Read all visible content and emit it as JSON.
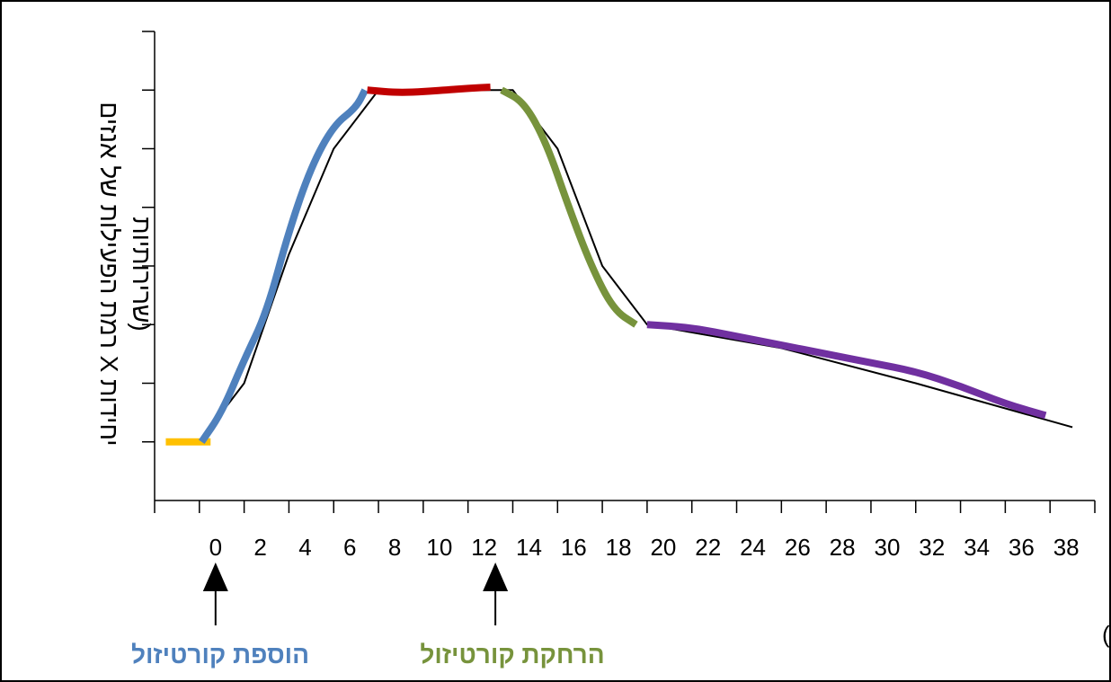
{
  "chart_data": {
    "type": "line",
    "title": "",
    "ylabel_lines": [
      "רמת הפעילות של אנזים X יחידות",
      "שרירותיות)"
    ],
    "xlabel": "זמן בתרבית (שעות)",
    "x_ticks": [
      "0",
      "2",
      "4",
      "6",
      "8",
      "10",
      "12",
      "14",
      "16",
      "18",
      "20",
      "22",
      "24",
      "26",
      "28",
      "30",
      "32",
      "34",
      "36",
      "38"
    ],
    "y_tick_count": 8,
    "xlim": [
      -2,
      40
    ],
    "ylim": [
      0,
      8
    ],
    "grid": false,
    "legend": "none",
    "reference_line": {
      "x": [
        0,
        2,
        4,
        6,
        8,
        12,
        14,
        16,
        18,
        20,
        26,
        32,
        39
      ],
      "y": [
        1,
        2,
        4.2,
        6,
        7,
        7,
        7,
        6,
        4,
        3,
        2.6,
        2,
        1.25
      ]
    },
    "series": [
      {
        "color": "#FFC000",
        "x": [
          -1.5,
          0.5
        ],
        "y": [
          1,
          1
        ]
      },
      {
        "color": "#4F81BD",
        "x": [
          0.1,
          1,
          2,
          3,
          4,
          5,
          6,
          7,
          7.4
        ],
        "y": [
          1,
          1.5,
          2.4,
          3.2,
          4.6,
          5.7,
          6.4,
          6.7,
          7
        ]
      },
      {
        "color": "#C00000",
        "x": [
          7.5,
          9,
          11,
          12,
          13
        ],
        "y": [
          7,
          6.95,
          7,
          7.03,
          7.05
        ]
      },
      {
        "color": "#77933C",
        "x": [
          13.5,
          14.5,
          15.5,
          16.5,
          17.5,
          18.5,
          19.5
        ],
        "y": [
          7,
          6.8,
          6.1,
          5,
          4,
          3.25,
          3
        ]
      },
      {
        "color": "#7030A0",
        "x": [
          20,
          22,
          24,
          26,
          28,
          30,
          32,
          34,
          36,
          37.8
        ],
        "y": [
          3,
          2.95,
          2.8,
          2.65,
          2.5,
          2.35,
          2.2,
          1.95,
          1.65,
          1.45
        ]
      }
    ],
    "annotations": [
      {
        "text": "הוספת קורטיזול",
        "x": 0,
        "color": "#4F81BD"
      },
      {
        "text": "הרחקת קורטיזול",
        "x": 12.5,
        "color": "#77933C"
      }
    ]
  }
}
